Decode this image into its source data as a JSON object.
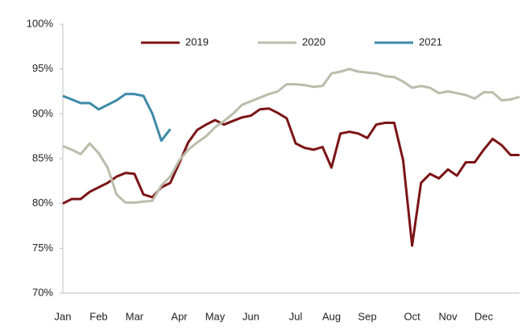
{
  "chart_data": {
    "type": "line",
    "categories": [
      "Jan",
      null,
      null,
      null,
      "Feb",
      null,
      null,
      null,
      "Mar",
      null,
      null,
      null,
      null,
      "Apr",
      null,
      null,
      null,
      "May",
      null,
      null,
      null,
      "Jun",
      null,
      null,
      null,
      null,
      "Jul",
      null,
      null,
      null,
      "Aug",
      null,
      null,
      null,
      "Sep",
      null,
      null,
      null,
      null,
      "Oct",
      null,
      null,
      null,
      "Nov",
      null,
      null,
      null,
      "Dec",
      null,
      null,
      null,
      null
    ],
    "series": [
      {
        "name": "2019",
        "color": "#7b1416",
        "values": [
          80.0,
          80.5,
          80.5,
          81.3,
          81.8,
          82.3,
          83.0,
          83.4,
          83.3,
          81.0,
          80.7,
          81.8,
          82.3,
          84.5,
          86.8,
          88.2,
          88.8,
          89.3,
          88.8,
          89.2,
          89.6,
          89.8,
          90.5,
          90.6,
          90.1,
          89.5,
          86.7,
          86.2,
          86.0,
          86.3,
          84.0,
          87.8,
          88.0,
          87.8,
          87.3,
          88.8,
          89.0,
          89.0,
          84.8,
          75.3,
          82.3,
          83.3,
          82.8,
          83.8,
          83.1,
          84.6,
          84.6,
          86.0,
          87.2,
          86.5,
          85.4,
          85.4
        ]
      },
      {
        "name": "2020",
        "color": "#bcbcab",
        "values": [
          86.4,
          86.0,
          85.5,
          86.7,
          85.6,
          84.0,
          81.0,
          80.1,
          80.1,
          80.2,
          80.3,
          82.0,
          83.0,
          84.8,
          86.0,
          86.8,
          87.5,
          88.5,
          89.2,
          90.0,
          91.0,
          91.4,
          91.8,
          92.2,
          92.5,
          93.3,
          93.3,
          93.2,
          93.0,
          93.1,
          94.5,
          94.7,
          95.0,
          94.7,
          94.6,
          94.5,
          94.2,
          94.1,
          93.6,
          92.9,
          93.1,
          92.9,
          92.3,
          92.5,
          92.3,
          92.1,
          91.7,
          92.4,
          92.4,
          91.5,
          91.6,
          91.9
        ]
      },
      {
        "name": "2021",
        "color": "#3d8aa8",
        "values": [
          92.0,
          91.6,
          91.2,
          91.2,
          90.5,
          91.0,
          91.5,
          92.2,
          92.2,
          92.0,
          90.0,
          87.0,
          88.3,
          null,
          null,
          null,
          null,
          null,
          null,
          null,
          null,
          null,
          null,
          null,
          null,
          null,
          null,
          null,
          null,
          null,
          null,
          null,
          null,
          null,
          null,
          null,
          null,
          null,
          null,
          null,
          null,
          null,
          null,
          null,
          null,
          null,
          null,
          null,
          null,
          null,
          null,
          null
        ]
      }
    ],
    "ylim": [
      70,
      100
    ],
    "yticks": [
      {
        "value": 70,
        "label": "70%"
      },
      {
        "value": 75,
        "label": "75%"
      },
      {
        "value": 80,
        "label": "80%"
      },
      {
        "value": 85,
        "label": "85%"
      },
      {
        "value": 90,
        "label": "90%"
      },
      {
        "value": 95,
        "label": "95%"
      },
      {
        "value": 100,
        "label": "100%"
      }
    ],
    "grid": false,
    "legend": "top"
  }
}
